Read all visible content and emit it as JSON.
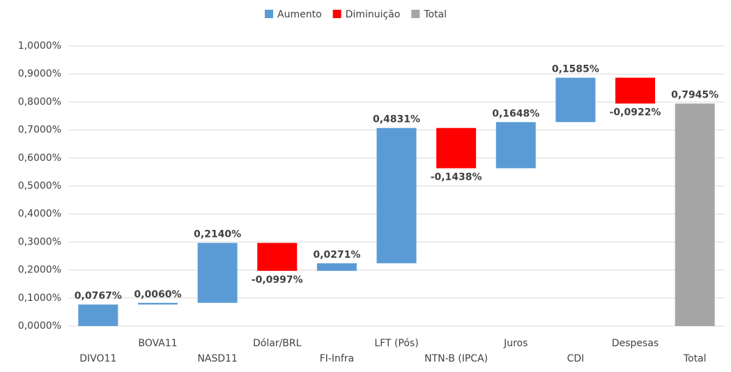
{
  "chart_data": {
    "type": "waterfall",
    "categories": [
      "DIVO11",
      "BOVA11",
      "NASD11",
      "Dólar/BRL",
      "FI-Infra",
      "LFT (Pós)",
      "NTN-B (IPCA)",
      "Juros",
      "CDI",
      "Despesas",
      "Total"
    ],
    "series": [
      {
        "name": "Aumento",
        "color": "#5b9bd5",
        "values": [
          0.0767,
          0.006,
          0.214,
          null,
          0.0271,
          0.4831,
          null,
          0.1648,
          0.1585,
          null,
          null
        ],
        "value_labels": [
          "0,0767%",
          "0,0060%",
          "0,2140%",
          null,
          "0,0271%",
          "0,4831%",
          null,
          "0,1648%",
          "0,1585%",
          null,
          null
        ]
      },
      {
        "name": "Diminuição",
        "color": "#ff0000",
        "values": [
          null,
          null,
          null,
          -0.0997,
          null,
          null,
          -0.1438,
          null,
          null,
          -0.0922,
          null
        ],
        "value_labels": [
          null,
          null,
          null,
          "-0,0997%",
          null,
          null,
          "-0,1438%",
          null,
          null,
          "-0,0922%",
          null
        ]
      },
      {
        "name": "Total",
        "color": "#a5a5a5",
        "total": true,
        "values": [
          null,
          null,
          null,
          null,
          null,
          null,
          null,
          null,
          null,
          null,
          0.7945
        ],
        "value_labels": [
          null,
          null,
          null,
          null,
          null,
          null,
          null,
          null,
          null,
          null,
          "0,7945%"
        ]
      }
    ],
    "ylim": [
      0,
      1
    ],
    "yticks": [
      {
        "value": 0,
        "label": "0,0000%"
      },
      {
        "value": 0.1,
        "label": "0,1000%"
      },
      {
        "value": 0.2,
        "label": "0,2000%"
      },
      {
        "value": 0.3,
        "label": "0,3000%"
      },
      {
        "value": 0.4,
        "label": "0,4000%"
      },
      {
        "value": 0.5,
        "label": "0,5000%"
      },
      {
        "value": 0.6,
        "label": "0,6000%"
      },
      {
        "value": 0.7,
        "label": "0,7000%"
      },
      {
        "value": 0.8,
        "label": "0,8000%"
      },
      {
        "value": 0.9,
        "label": "0,9000%"
      },
      {
        "value": 1,
        "label": "1,0000%"
      }
    ],
    "grid": true,
    "legend": "top"
  }
}
